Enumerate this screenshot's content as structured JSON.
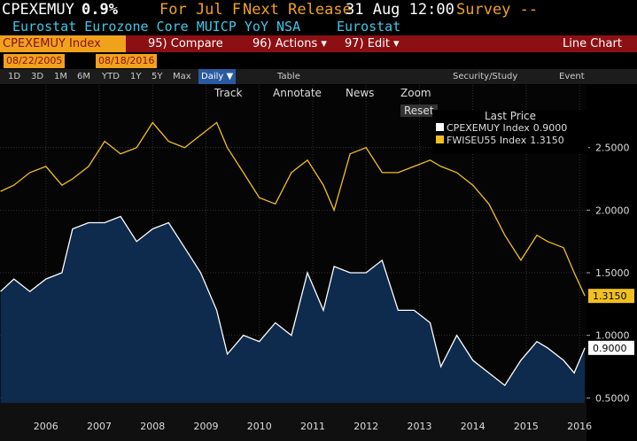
{
  "header": {
    "ticker": "CPEXEMUY",
    "last": "0.9%",
    "period": "For Jul F",
    "release_label": "Next Release",
    "release": "31 Aug 12:00",
    "survey": "Survey --",
    "description": "Eurostat Eurozone Core MUICP YoY NSA",
    "source": "Eurostat"
  },
  "menu": {
    "security": "CPEXEMUY Index",
    "compare": "95) Compare",
    "actions": "96) Actions ▾",
    "edit": "97) Edit ▾",
    "view": "Line Chart"
  },
  "dates": {
    "start": "08/22/2005",
    "end": "08/18/2016"
  },
  "toolbar": {
    "ranges": [
      "1D",
      "3D",
      "1M",
      "6M",
      "YTD",
      "1Y",
      "5Y",
      "Max"
    ],
    "frequency": "Daily ▼",
    "table": "Table",
    "security_study": "Security/Study",
    "event": "Event"
  },
  "chart_tools": [
    "Track",
    "Annotate",
    "News",
    "Zoom",
    "Reset"
  ],
  "chart_data": {
    "type": "line",
    "legend_title": "Last Price",
    "x": [
      2005.65,
      2005.9,
      2006.2,
      2006.5,
      2006.8,
      2007.0,
      2007.3,
      2007.6,
      2007.9,
      2008.2,
      2008.5,
      2008.8,
      2009.1,
      2009.4,
      2009.7,
      2009.9,
      2010.2,
      2010.5,
      2010.8,
      2011.1,
      2011.4,
      2011.7,
      2011.9,
      2012.2,
      2012.5,
      2012.8,
      2013.1,
      2013.4,
      2013.7,
      2013.9,
      2014.2,
      2014.5,
      2014.8,
      2015.1,
      2015.4,
      2015.7,
      2015.9,
      2016.2,
      2016.4,
      2016.6
    ],
    "series": [
      {
        "name": "CPEXEMUY Index",
        "color": "#ffffff",
        "last_label": "0.9000",
        "values": [
          1.35,
          1.45,
          1.35,
          1.45,
          1.5,
          1.85,
          1.9,
          1.9,
          1.95,
          1.75,
          1.85,
          1.9,
          1.7,
          1.5,
          1.2,
          0.85,
          1.0,
          0.95,
          1.1,
          1.0,
          1.5,
          1.2,
          1.55,
          1.5,
          1.5,
          1.6,
          1.2,
          1.2,
          1.1,
          0.75,
          1.0,
          0.8,
          0.7,
          0.6,
          0.8,
          0.95,
          0.9,
          0.8,
          0.7,
          0.9
        ]
      },
      {
        "name": "FWISEU55 Index",
        "color": "#f0c020",
        "last_label": "1.3150",
        "values": [
          2.15,
          2.2,
          2.3,
          2.35,
          2.2,
          2.25,
          2.35,
          2.55,
          2.45,
          2.5,
          2.7,
          2.55,
          2.5,
          2.6,
          2.7,
          2.5,
          2.3,
          2.1,
          2.05,
          2.3,
          2.4,
          2.2,
          2.0,
          2.45,
          2.5,
          2.3,
          2.3,
          2.35,
          2.4,
          2.35,
          2.3,
          2.2,
          2.05,
          1.8,
          1.6,
          1.8,
          1.75,
          1.7,
          1.5,
          1.315
        ]
      }
    ],
    "xlim": [
      2005.64,
      2016.63
    ],
    "xticks": [
      {
        "value": 2006.5,
        "label": "2006"
      },
      {
        "value": 2007.5,
        "label": "2007"
      },
      {
        "value": 2008.5,
        "label": "2008"
      },
      {
        "value": 2009.5,
        "label": "2009"
      },
      {
        "value": 2010.5,
        "label": "2010"
      },
      {
        "value": 2011.5,
        "label": "2011"
      },
      {
        "value": 2012.5,
        "label": "2012"
      },
      {
        "value": 2013.5,
        "label": "2013"
      },
      {
        "value": 2014.5,
        "label": "2014"
      },
      {
        "value": 2015.5,
        "label": "2015"
      },
      {
        "value": 2016.5,
        "label": "2016"
      }
    ],
    "ylim": [
      0.46,
      3.0
    ],
    "yticks": [
      {
        "value": 0.5,
        "label": "0.5000"
      },
      {
        "value": 1.0,
        "label": "1.0000"
      },
      {
        "value": 1.5,
        "label": "1.5000"
      },
      {
        "value": 2.0,
        "label": "2.0000"
      },
      {
        "value": 2.5,
        "label": "2.5000"
      }
    ],
    "grid": true
  }
}
